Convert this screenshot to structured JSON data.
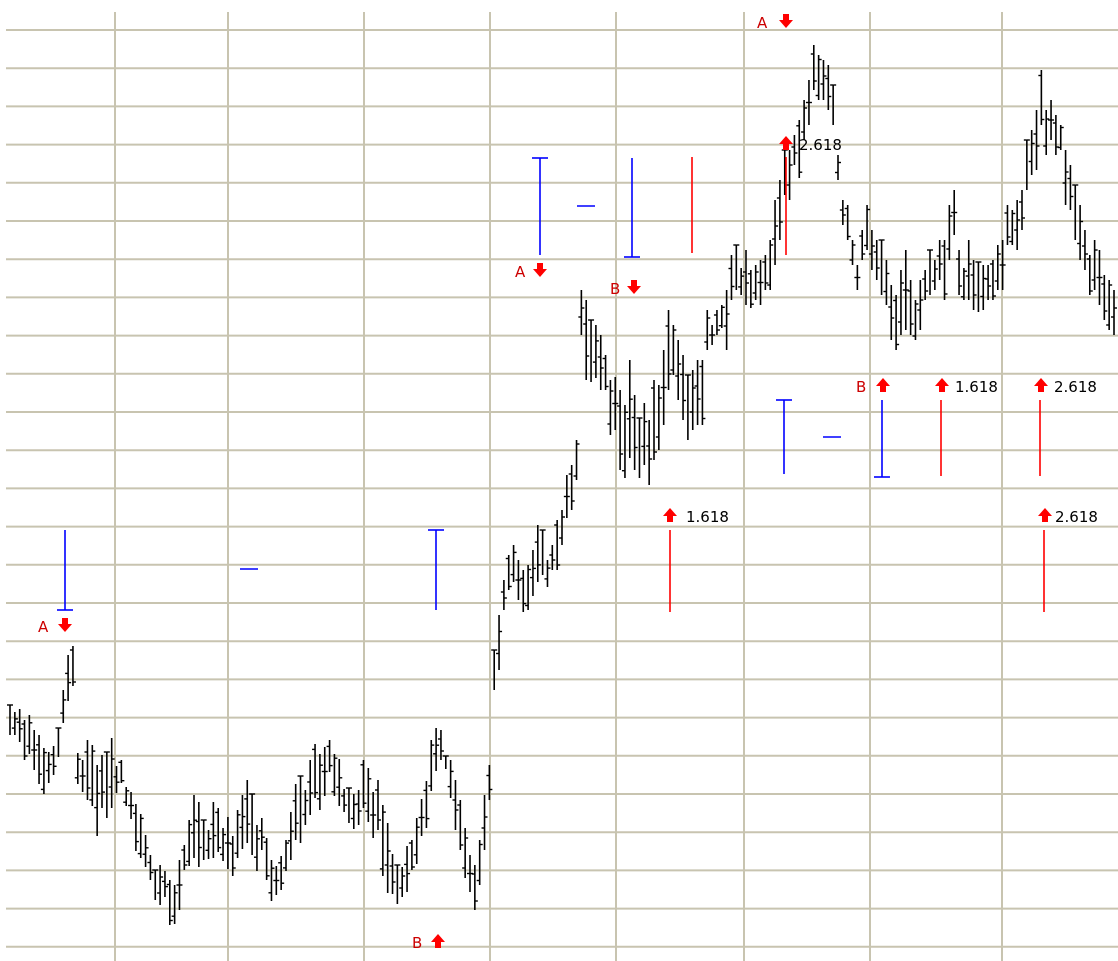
{
  "chart_data": {
    "type": "ohlc",
    "grid": "on",
    "colors": {
      "bars": "#000000",
      "grid": "#c8c4b0",
      "fib_up": "#ff0000",
      "fib_down": "#ff0000",
      "projection": "#0000ff"
    },
    "series": [
      {
        "values": [
          [
            705,
            735
          ],
          [
            712,
            735
          ],
          [
            709,
            742
          ],
          [
            720,
            760
          ],
          [
            715,
            754
          ],
          [
            730,
            770
          ],
          [
            735,
            784
          ],
          [
            748,
            794
          ],
          [
            752,
            783
          ],
          [
            746,
            775
          ],
          [
            728,
            757
          ],
          [
            690,
            723
          ],
          [
            655,
            701
          ],
          [
            646,
            686
          ],
          [
            753,
            784
          ],
          [
            760,
            792
          ],
          [
            740,
            800
          ],
          [
            745,
            806
          ],
          [
            765,
            836
          ],
          [
            755,
            808
          ],
          [
            752,
            818
          ],
          [
            738,
            808
          ],
          [
            766,
            793
          ],
          [
            760,
            783
          ],
          [
            787,
            806
          ],
          [
            792,
            819
          ],
          [
            804,
            851
          ],
          [
            814,
            858
          ],
          [
            835,
            867
          ],
          [
            855,
            880
          ],
          [
            870,
            900
          ],
          [
            865,
            905
          ],
          [
            871,
            897
          ],
          [
            880,
            925
          ],
          [
            885,
            924
          ],
          [
            860,
            910
          ],
          [
            845,
            870
          ],
          [
            820,
            866
          ],
          [
            795,
            858
          ],
          [
            802,
            867
          ],
          [
            820,
            860
          ],
          [
            830,
            859
          ],
          [
            802,
            858
          ],
          [
            808,
            852
          ],
          [
            828,
            861
          ],
          [
            817,
            869
          ],
          [
            836,
            876
          ],
          [
            810,
            858
          ],
          [
            795,
            849
          ],
          [
            780,
            843
          ],
          [
            794,
            855
          ],
          [
            825,
            871
          ],
          [
            818,
            850
          ],
          [
            838,
            880
          ],
          [
            860,
            901
          ],
          [
            866,
            895
          ],
          [
            856,
            890
          ],
          [
            840,
            871
          ],
          [
            812,
            860
          ],
          [
            784,
            840
          ],
          [
            776,
            843
          ],
          [
            790,
            825
          ],
          [
            760,
            815
          ],
          [
            744,
            798
          ],
          [
            754,
            810
          ],
          [
            747,
            796
          ],
          [
            740,
            772
          ],
          [
            754,
            796
          ],
          [
            759,
            806
          ],
          [
            789,
            812
          ],
          [
            788,
            823
          ],
          [
            794,
            829
          ],
          [
            790,
            825
          ],
          [
            760,
            808
          ],
          [
            768,
            822
          ],
          [
            792,
            838
          ],
          [
            780,
            830
          ],
          [
            805,
            876
          ],
          [
            823,
            893
          ],
          [
            854,
            894
          ],
          [
            865,
            904
          ],
          [
            867,
            897
          ],
          [
            846,
            892
          ],
          [
            840,
            870
          ],
          [
            818,
            864
          ],
          [
            799,
            836
          ],
          [
            781,
            828
          ],
          [
            740,
            791
          ],
          [
            728,
            771
          ],
          [
            730,
            760
          ],
          [
            756,
            769
          ],
          [
            760,
            798
          ],
          [
            780,
            830
          ],
          [
            800,
            850
          ],
          [
            828,
            878
          ],
          [
            855,
            892
          ],
          [
            865,
            910
          ],
          [
            840,
            885
          ],
          [
            795,
            850
          ],
          [
            765,
            800
          ],
          [
            650,
            690
          ],
          [
            615,
            670
          ],
          [
            580,
            610
          ],
          [
            555,
            590
          ],
          [
            545,
            582
          ],
          [
            560,
            600
          ],
          [
            570,
            612
          ],
          [
            565,
            610
          ],
          [
            550,
            596
          ],
          [
            525,
            582
          ],
          [
            530,
            575
          ],
          [
            560,
            587
          ],
          [
            545,
            570
          ],
          [
            520,
            570
          ],
          [
            510,
            545
          ],
          [
            475,
            518
          ],
          [
            465,
            510
          ],
          [
            440,
            480
          ],
          [
            290,
            335
          ],
          [
            300,
            380
          ],
          [
            320,
            382
          ],
          [
            325,
            378
          ],
          [
            335,
            390
          ],
          [
            355,
            390
          ],
          [
            380,
            435
          ],
          [
            377,
            430
          ],
          [
            390,
            470
          ],
          [
            405,
            478
          ],
          [
            360,
            458
          ],
          [
            395,
            470
          ],
          [
            418,
            478
          ],
          [
            403,
            465
          ],
          [
            420,
            485
          ],
          [
            380,
            460
          ],
          [
            385,
            450
          ],
          [
            350,
            425
          ],
          [
            310,
            390
          ],
          [
            325,
            375
          ],
          [
            340,
            400
          ],
          [
            355,
            420
          ],
          [
            375,
            440
          ],
          [
            370,
            430
          ],
          [
            360,
            425
          ],
          [
            360,
            425
          ],
          [
            310,
            350
          ],
          [
            325,
            345
          ],
          [
            310,
            335
          ],
          [
            305,
            328
          ],
          [
            290,
            350
          ],
          [
            255,
            300
          ],
          [
            245,
            290
          ],
          [
            268,
            295
          ],
          [
            250,
            305
          ],
          [
            270,
            308
          ],
          [
            265,
            300
          ],
          [
            260,
            305
          ],
          [
            255,
            290
          ],
          [
            240,
            290
          ],
          [
            200,
            265
          ],
          [
            180,
            240
          ],
          [
            150,
            195
          ],
          [
            150,
            200
          ],
          [
            135,
            165
          ],
          [
            120,
            178
          ],
          [
            100,
            140
          ],
          [
            80,
            125
          ],
          [
            45,
            90
          ],
          [
            55,
            100
          ],
          [
            60,
            100
          ],
          [
            65,
            110
          ],
          [
            85,
            125
          ],
          [
            155,
            180
          ],
          [
            200,
            225
          ],
          [
            205,
            240
          ],
          [
            240,
            265
          ],
          [
            265,
            290
          ],
          [
            230,
            260
          ],
          [
            205,
            250
          ],
          [
            230,
            270
          ],
          [
            240,
            280
          ],
          [
            240,
            295
          ],
          [
            260,
            305
          ],
          [
            285,
            340
          ],
          [
            295,
            350
          ],
          [
            270,
            335
          ],
          [
            250,
            330
          ],
          [
            280,
            335
          ],
          [
            300,
            340
          ],
          [
            280,
            330
          ],
          [
            270,
            300
          ],
          [
            250,
            295
          ],
          [
            260,
            290
          ],
          [
            240,
            280
          ],
          [
            240,
            300
          ],
          [
            205,
            260
          ],
          [
            190,
            235
          ],
          [
            250,
            295
          ],
          [
            268,
            300
          ],
          [
            240,
            300
          ],
          [
            260,
            310
          ],
          [
            262,
            312
          ],
          [
            265,
            310
          ],
          [
            265,
            300
          ],
          [
            260,
            300
          ],
          [
            245,
            290
          ],
          [
            240,
            290
          ],
          [
            205,
            245
          ],
          [
            210,
            245
          ],
          [
            200,
            250
          ],
          [
            190,
            230
          ],
          [
            140,
            190
          ],
          [
            130,
            175
          ],
          [
            110,
            170
          ],
          [
            70,
            125
          ],
          [
            110,
            155
          ],
          [
            100,
            140
          ],
          [
            115,
            155
          ],
          [
            125,
            150
          ],
          [
            150,
            205
          ],
          [
            165,
            210
          ],
          [
            185,
            240
          ],
          [
            205,
            260
          ],
          [
            230,
            270
          ],
          [
            255,
            295
          ],
          [
            240,
            290
          ],
          [
            250,
            305
          ],
          [
            275,
            320
          ],
          [
            280,
            330
          ],
          [
            290,
            335
          ]
        ]
      }
    ],
    "annotations": {
      "A1": "A",
      "B1": "B",
      "A2": "A",
      "B2": "B",
      "A3": "A",
      "B3": "B",
      "f1": "1.618",
      "f2": "2.618",
      "f3": "1.618",
      "f4": "2.618",
      "f5": "2.618"
    }
  }
}
